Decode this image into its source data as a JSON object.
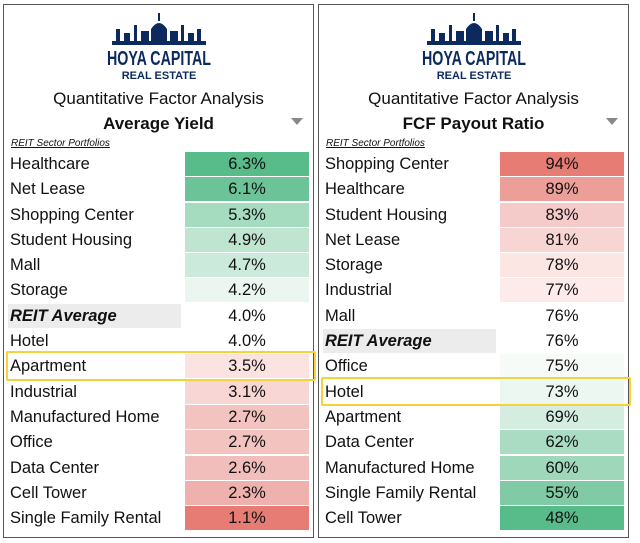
{
  "brand": {
    "name_line1": "HOYA CAPITAL",
    "name_line2": "REAL ESTATE",
    "color": "#0d2a5e"
  },
  "panels": [
    {
      "subtitle": "Quantitative Factor Analysis",
      "metric": "Average Yield",
      "section_label": "REIT Sector Portfolios",
      "highlight_row": 8,
      "rows": [
        {
          "name": "Healthcare",
          "value": "6.3%",
          "color": "#57bb8a"
        },
        {
          "name": "Net Lease",
          "value": "6.1%",
          "color": "#6cc398"
        },
        {
          "name": "Shopping Center",
          "value": "5.3%",
          "color": "#a5dbbf"
        },
        {
          "name": "Student Housing",
          "value": "4.9%",
          "color": "#bfe5d0"
        },
        {
          "name": "Mall",
          "value": "4.7%",
          "color": "#cceadb"
        },
        {
          "name": "Storage",
          "value": "4.2%",
          "color": "#eaf6ef"
        },
        {
          "name": "REIT Average",
          "value": "4.0%",
          "color": "#ffffff",
          "avg": true
        },
        {
          "name": "Hotel",
          "value": "4.0%",
          "color": "#ffffff"
        },
        {
          "name": "Apartment",
          "value": "3.5%",
          "color": "#fbe3e1"
        },
        {
          "name": "Industrial",
          "value": "3.1%",
          "color": "#f8d6d3"
        },
        {
          "name": "Manufactured Home",
          "value": "2.7%",
          "color": "#f2c3bf"
        },
        {
          "name": "Office",
          "value": "2.7%",
          "color": "#f2c3bf"
        },
        {
          "name": "Data Center",
          "value": "2.6%",
          "color": "#f1bebb"
        },
        {
          "name": "Cell Tower",
          "value": "2.3%",
          "color": "#eeb1ad"
        },
        {
          "name": "Single Family Rental",
          "value": "1.1%",
          "color": "#e67c73"
        }
      ]
    },
    {
      "subtitle": "Quantitative Factor Analysis",
      "metric": "FCF Payout Ratio",
      "section_label": "REIT Sector Portfolios",
      "highlight_row": 9,
      "rows": [
        {
          "name": "Shopping Center",
          "value": "94%",
          "color": "#e67c73"
        },
        {
          "name": "Healthcare",
          "value": "89%",
          "color": "#ec9f99"
        },
        {
          "name": "Student Housing",
          "value": "83%",
          "color": "#f4cbc8"
        },
        {
          "name": "Net Lease",
          "value": "81%",
          "color": "#f7d5d2"
        },
        {
          "name": "Storage",
          "value": "78%",
          "color": "#fbe6e4"
        },
        {
          "name": "Industrial",
          "value": "77%",
          "color": "#fcebea"
        },
        {
          "name": "Mall",
          "value": "76%",
          "color": "#ffffff"
        },
        {
          "name": "REIT Average",
          "value": "76%",
          "color": "#ffffff",
          "avg": true
        },
        {
          "name": "Office",
          "value": "75%",
          "color": "#f6fbf8"
        },
        {
          "name": "Hotel",
          "value": "73%",
          "color": "#edf7f1"
        },
        {
          "name": "Apartment",
          "value": "69%",
          "color": "#d4ede0"
        },
        {
          "name": "Data Center",
          "value": "62%",
          "color": "#a9dcc2"
        },
        {
          "name": "Manufactured Home",
          "value": "60%",
          "color": "#9ed7ba"
        },
        {
          "name": "Single Family Rental",
          "value": "55%",
          "color": "#80cba5"
        },
        {
          "name": "Cell Tower",
          "value": "48%",
          "color": "#57bb8a"
        }
      ]
    }
  ]
}
